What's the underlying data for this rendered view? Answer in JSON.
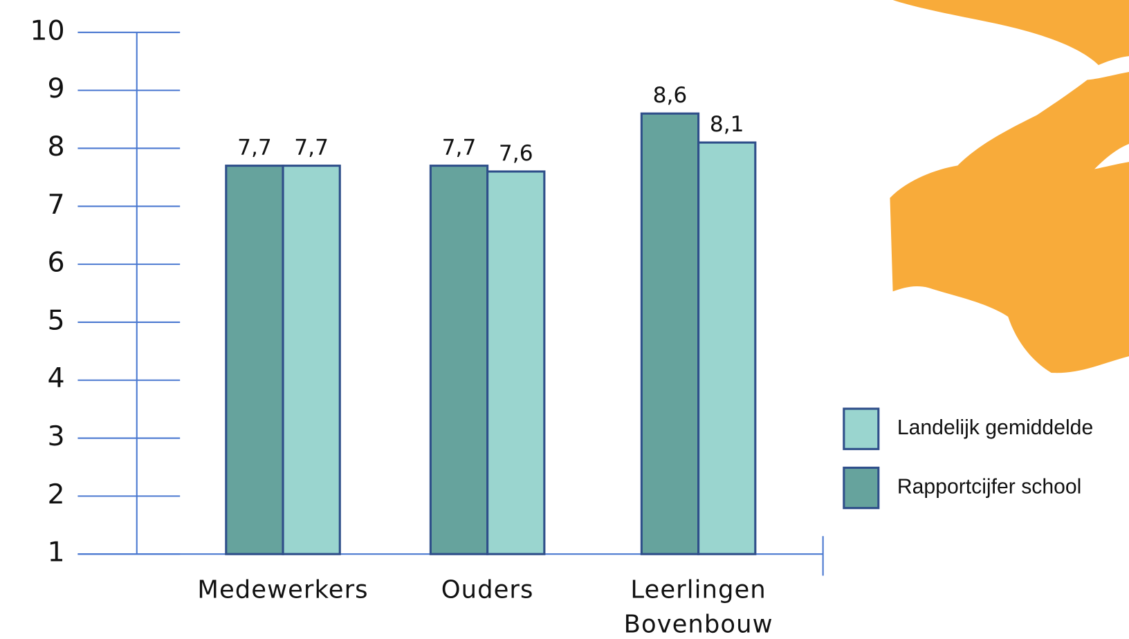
{
  "chart_data": {
    "type": "bar",
    "categories": [
      "Medewerkers",
      "Ouders",
      "Leerlingen Bovenbouw"
    ],
    "series": [
      {
        "name": "Rapportcijfer school",
        "color": "#66a39d",
        "values": [
          7.7,
          7.7,
          8.6
        ],
        "value_labels": [
          "7,7",
          "7,7",
          "8,6"
        ]
      },
      {
        "name": "Landelijk gemiddelde",
        "color": "#9ad5cf",
        "values": [
          7.7,
          7.6,
          8.1
        ],
        "value_labels": [
          "7,7",
          "7,6",
          "8,1"
        ]
      }
    ],
    "ylim": [
      1,
      10
    ],
    "yticks": [
      1,
      2,
      3,
      4,
      5,
      6,
      7,
      8,
      9,
      10
    ],
    "grid": false,
    "legend": "right"
  }
}
